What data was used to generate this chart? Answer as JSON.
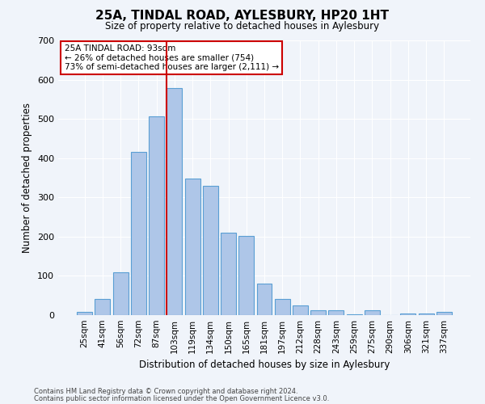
{
  "title": "25A, TINDAL ROAD, AYLESBURY, HP20 1HT",
  "subtitle": "Size of property relative to detached houses in Aylesbury",
  "xlabel": "Distribution of detached houses by size in Aylesbury",
  "ylabel": "Number of detached properties",
  "categories": [
    "25sqm",
    "41sqm",
    "56sqm",
    "72sqm",
    "87sqm",
    "103sqm",
    "119sqm",
    "134sqm",
    "150sqm",
    "165sqm",
    "181sqm",
    "197sqm",
    "212sqm",
    "228sqm",
    "243sqm",
    "259sqm",
    "275sqm",
    "290sqm",
    "306sqm",
    "321sqm",
    "337sqm"
  ],
  "values": [
    8,
    42,
    110,
    415,
    507,
    578,
    348,
    330,
    210,
    202,
    80,
    42,
    25,
    12,
    13,
    3,
    13,
    0,
    5,
    5,
    8
  ],
  "bar_color": "#aec6e8",
  "bar_edge_color": "#5a9fd4",
  "property_line_x": 4.58,
  "property_line_color": "#cc0000",
  "annotation_text": "25A TINDAL ROAD: 93sqm\n← 26% of detached houses are smaller (754)\n73% of semi-detached houses are larger (2,111) →",
  "annotation_box_color": "#ffffff",
  "annotation_box_edge_color": "#cc0000",
  "ylim": [
    0,
    700
  ],
  "yticks": [
    0,
    100,
    200,
    300,
    400,
    500,
    600,
    700
  ],
  "footer1": "Contains HM Land Registry data © Crown copyright and database right 2024.",
  "footer2": "Contains public sector information licensed under the Open Government Licence v3.0.",
  "bg_color": "#f0f4fa",
  "plot_bg_color": "#f0f4fa"
}
